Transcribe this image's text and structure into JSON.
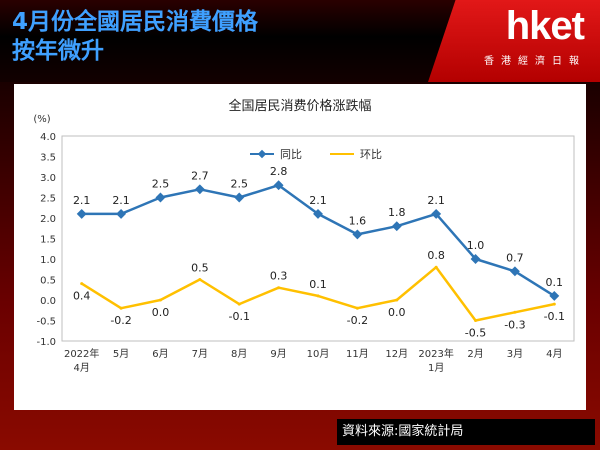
{
  "header": {
    "title_line1": "4月份全國居民消費價格",
    "title_line2": "按年微升",
    "brand": "hket",
    "brand_sub": "香港經濟日報"
  },
  "source_note": "資料來源:國家統計局",
  "colors": {
    "series_yoy": "#2e75b6",
    "series_mom": "#ffc000",
    "title_blue": "#3fa0ff",
    "brand_red": "#d71a1a"
  },
  "chart_data": {
    "type": "line",
    "title": "全国居民消费价格涨跌幅",
    "ylabel": "(%)",
    "ylim": [
      -1.0,
      4.0
    ],
    "ytick_labels": [
      "4.0",
      "3.5",
      "3.0",
      "2.5",
      "2.0",
      "1.5",
      "1.0",
      "0.5",
      "0.0",
      "-0.5",
      "-1.0"
    ],
    "categories": [
      [
        "2022年",
        "4月"
      ],
      [
        "5月"
      ],
      [
        "6月"
      ],
      [
        "7月"
      ],
      [
        "8月"
      ],
      [
        "9月"
      ],
      [
        "10月"
      ],
      [
        "11月"
      ],
      [
        "12月"
      ],
      [
        "2023年",
        "1月"
      ],
      [
        "2月"
      ],
      [
        "3月"
      ],
      [
        "4月"
      ]
    ],
    "legend_position": "top-center",
    "grid": false,
    "series": [
      {
        "name": "同比",
        "values": [
          2.1,
          2.1,
          2.5,
          2.7,
          2.5,
          2.8,
          2.1,
          1.6,
          1.8,
          2.1,
          1.0,
          0.7,
          0.1
        ],
        "labels": [
          "2.1",
          "2.1",
          "2.5",
          "2.7",
          "2.5",
          "2.8",
          "2.1",
          "1.6",
          "1.8",
          "2.1",
          "1.0",
          "0.7",
          "0.1"
        ]
      },
      {
        "name": "环比",
        "values": [
          0.4,
          -0.2,
          0.0,
          0.5,
          -0.1,
          0.3,
          0.1,
          -0.2,
          0.0,
          0.8,
          -0.5,
          -0.3,
          -0.1
        ],
        "labels": [
          "0.4",
          "-0.2",
          "0.0",
          "0.5",
          "-0.1",
          "0.3",
          "0.1",
          "-0.2",
          "0.0",
          "0.8",
          "-0.5",
          "-0.3",
          "-0.1"
        ]
      }
    ]
  }
}
